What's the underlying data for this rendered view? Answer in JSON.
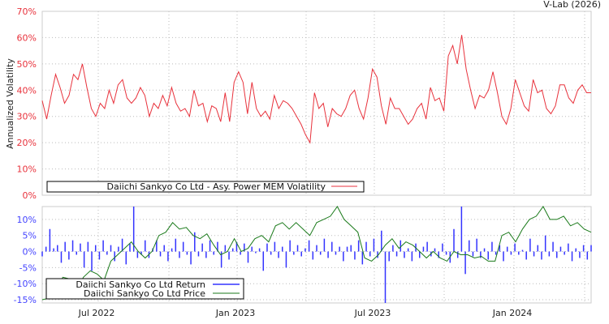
{
  "chart_data": [
    {
      "type": "line",
      "title": "V-Lab (2026)",
      "ylabel": "Annualized Volatility",
      "ylim": [
        0,
        70
      ],
      "yticks": [
        "0%",
        "10%",
        "20%",
        "30%",
        "40%",
        "50%",
        "60%",
        "70%"
      ],
      "ytick_values": [
        0,
        10,
        20,
        30,
        40,
        50,
        60,
        70
      ],
      "grid": true,
      "legend_placement": "bottom-left",
      "series": [
        {
          "name": "Daiichi Sankyo Co Ltd - Asy. Power MEM Volatility",
          "color": "#e8323c",
          "values": [
            36,
            29,
            38,
            46,
            41,
            35,
            38,
            46,
            44,
            50,
            41,
            33,
            30,
            35,
            33,
            40,
            35,
            42,
            44,
            37,
            35,
            37,
            41,
            38,
            30,
            35,
            33,
            38,
            34,
            41,
            35,
            32,
            33,
            30,
            40,
            34,
            35,
            28,
            34,
            33,
            28,
            39,
            28,
            43,
            47,
            43,
            31,
            43,
            33,
            30,
            32,
            29,
            38,
            33,
            36,
            35,
            33,
            30,
            27,
            23,
            20,
            39,
            33,
            35,
            26,
            33,
            31,
            30,
            33,
            38,
            40,
            33,
            29,
            37,
            48,
            45,
            34,
            27,
            37,
            33,
            33,
            30,
            27,
            29,
            33,
            35,
            29,
            41,
            36,
            37,
            32,
            53,
            57,
            50,
            61,
            48,
            40,
            33,
            38,
            37,
            40,
            47,
            39,
            30,
            27,
            33,
            44,
            39,
            34,
            32,
            44,
            39,
            40,
            33,
            31,
            34,
            42,
            42,
            37,
            35,
            40,
            42,
            39,
            39
          ]
        }
      ]
    },
    {
      "type": "line",
      "ylim": [
        -16,
        14
      ],
      "yticks": [
        "-15%",
        "-10%",
        "-5%",
        "0%",
        "5%",
        "10%"
      ],
      "ytick_values": [
        -15,
        -10,
        -5,
        0,
        5,
        10
      ],
      "xticks": [
        "Jul 2022",
        "Jan 2023",
        "Jul 2023",
        "Jan 2024"
      ],
      "grid": true,
      "legend_placement": "bottom-left",
      "series": [
        {
          "name": "Daiichi Sankyo Co Ltd Return",
          "color": "#3333ff",
          "values": [
            -1.5,
            1.5,
            7,
            1,
            2,
            -3.5,
            3,
            -2.5,
            3.5,
            -1,
            2.5,
            -5,
            3,
            -6,
            2,
            -2.5,
            3.5,
            -1,
            2,
            -3,
            1.5,
            4,
            -4,
            2.5,
            14,
            -2,
            -1,
            3.5,
            -2,
            1,
            3.5,
            -1.5,
            2,
            -3,
            1,
            4,
            -2,
            3,
            -1,
            -4,
            6,
            -1.5,
            2.5,
            -2,
            3.5,
            -1,
            3,
            -5,
            2,
            -2.5,
            1,
            3,
            -1,
            2.5,
            -3.5,
            1.5,
            -0.5,
            1,
            -6,
            2.5,
            -1,
            3,
            -2,
            1.5,
            -5,
            3.5,
            -1,
            2,
            -1.5,
            1,
            3.5,
            -2.5,
            2,
            -1,
            4,
            -2,
            3,
            -1,
            1.5,
            -3,
            1.5,
            2,
            -2.5,
            3.5,
            -4,
            3,
            -1.5,
            4,
            -2,
            6.5,
            -16,
            -3,
            2,
            -1.5,
            3.5,
            -2,
            1,
            -3,
            2.5,
            -2,
            1.5,
            3,
            -1.5,
            1,
            -2,
            2.5,
            -1,
            -3.5,
            7,
            -2,
            14,
            -7,
            3.5,
            -1.5,
            4,
            -2,
            1,
            -2.5,
            3,
            -1,
            2,
            -3,
            1.5,
            -1,
            2.5,
            -1,
            0.5,
            -2.5,
            4,
            -1.5,
            2,
            -2.5,
            5,
            -1.5,
            3,
            -2,
            1.5,
            -1,
            2.5,
            -3,
            1,
            -2,
            2,
            -2.5,
            2
          ]
        },
        {
          "name": "Daiichi Sankyo Co Ltd Price",
          "color": "#1a7a1a",
          "values": [
            -15,
            -14.5,
            -13,
            -8,
            -8.5,
            -12,
            -8,
            -6,
            -7,
            -9,
            -3,
            -1,
            1,
            3,
            0,
            -2,
            0,
            5,
            6,
            9,
            7,
            7.5,
            5,
            4,
            5.5,
            2,
            -1,
            0,
            4,
            0,
            1,
            4,
            5,
            3,
            8,
            9,
            7,
            9,
            7,
            5,
            9,
            10,
            11,
            14,
            10,
            8,
            6,
            -2,
            -3,
            -1,
            2,
            4,
            1,
            3,
            2,
            0,
            -2,
            0,
            -2,
            -3,
            0,
            -1,
            -1,
            -2,
            -1.5,
            -3,
            -3,
            5,
            6,
            3,
            7,
            10,
            11,
            14,
            10,
            10,
            11,
            8,
            9,
            7,
            6
          ]
        }
      ]
    }
  ]
}
